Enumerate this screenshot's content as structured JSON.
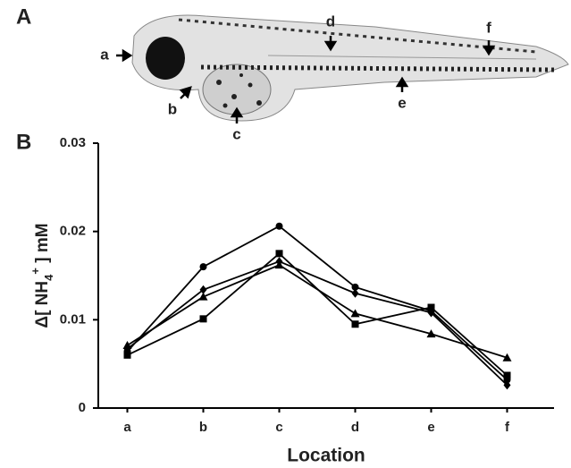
{
  "figure": {
    "panels": [
      "A",
      "B"
    ],
    "annotations": [
      "a",
      "b",
      "c",
      "d",
      "e",
      "f"
    ]
  },
  "chart_data": {
    "type": "line",
    "ylabel": [
      "Δ[ NH",
      "4",
      "+",
      " ] mM"
    ],
    "xlabel": "Location",
    "categories": [
      "a",
      "b",
      "c",
      "d",
      "e",
      "f"
    ],
    "series": [
      {
        "marker": "circle",
        "color": "#000000",
        "values": [
          0.0064,
          0.016,
          0.0206,
          0.0137,
          0.011,
          0.0032
        ]
      },
      {
        "marker": "square",
        "color": "#000000",
        "values": [
          0.006,
          0.0101,
          0.0175,
          0.0095,
          0.0114,
          0.0037
        ]
      },
      {
        "marker": "triangle",
        "color": "#000000",
        "values": [
          0.0071,
          0.0126,
          0.0162,
          0.0107,
          0.0084,
          0.0057
        ]
      },
      {
        "marker": "diamond",
        "color": "#000000",
        "values": [
          0.0067,
          0.0134,
          0.0166,
          0.013,
          0.0108,
          0.0026
        ]
      }
    ],
    "ylim": [
      0,
      0.03
    ],
    "yticks": [
      0,
      0.01,
      0.02,
      0.03
    ]
  }
}
